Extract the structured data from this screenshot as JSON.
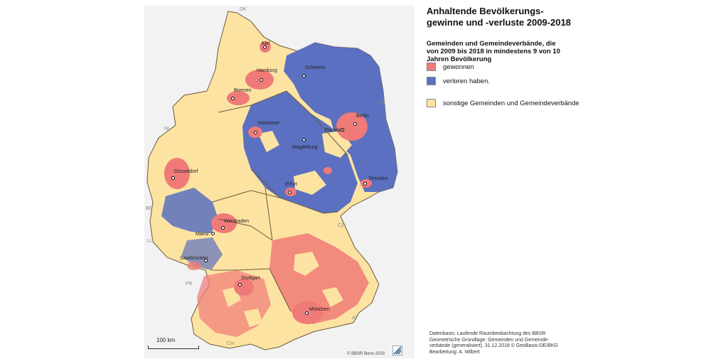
{
  "title": "Anhaltende Bevölkerungs- gewinne und -verluste 2009-2018",
  "subtitle": "Gemeinden und Gemeindeverbände, die von 2009 bis 2018 in mindestens 9 von 10 Jahren Bevölkerung",
  "legend": [
    {
      "label": "gewonnen",
      "color": "#f07a78"
    },
    {
      "label": "verloren haben.",
      "color": "#5b70c0"
    },
    {
      "label": "sonstige Gemeinden und Gemeindeverbände",
      "color": "#fde3a2"
    }
  ],
  "countries": {
    "dk": "DK",
    "pl": "PL",
    "nl": "NL",
    "be": "BE",
    "lu": "LU",
    "fr": "FR",
    "ch": "CH",
    "at": "AT",
    "cz": "CZ"
  },
  "cities": {
    "kiel": "Kiel",
    "hamburg": "Hamburg",
    "schwerin": "Schwerin",
    "bremen": "Bremen",
    "hannover": "Hannover",
    "berlin": "Berlin",
    "potsdam": "Potsdam",
    "magdeburg": "Magdeburg",
    "duesseldorf": "Düsseldorf",
    "erfurt": "Erfurt",
    "dresden": "Dresden",
    "wiesbaden": "Wiesbaden",
    "mainz": "Mainz",
    "saarbruecken": "Saarbrücken",
    "stuttgart": "Stuttgart",
    "muenchen": "München"
  },
  "scalebar_label": "100 km",
  "copyright": "© BBSR Bonn 2020",
  "sources": [
    "Datenbasis: Laufende Raumbeobachtung des BBSR",
    "Geometrische Grundlage: Gemeinden und Gemeinde-",
    "verbände (generalisiert), 31.12.2018 © GeoBasis-DE/BKG",
    "Bearbeitung: A. Milbert"
  ]
}
